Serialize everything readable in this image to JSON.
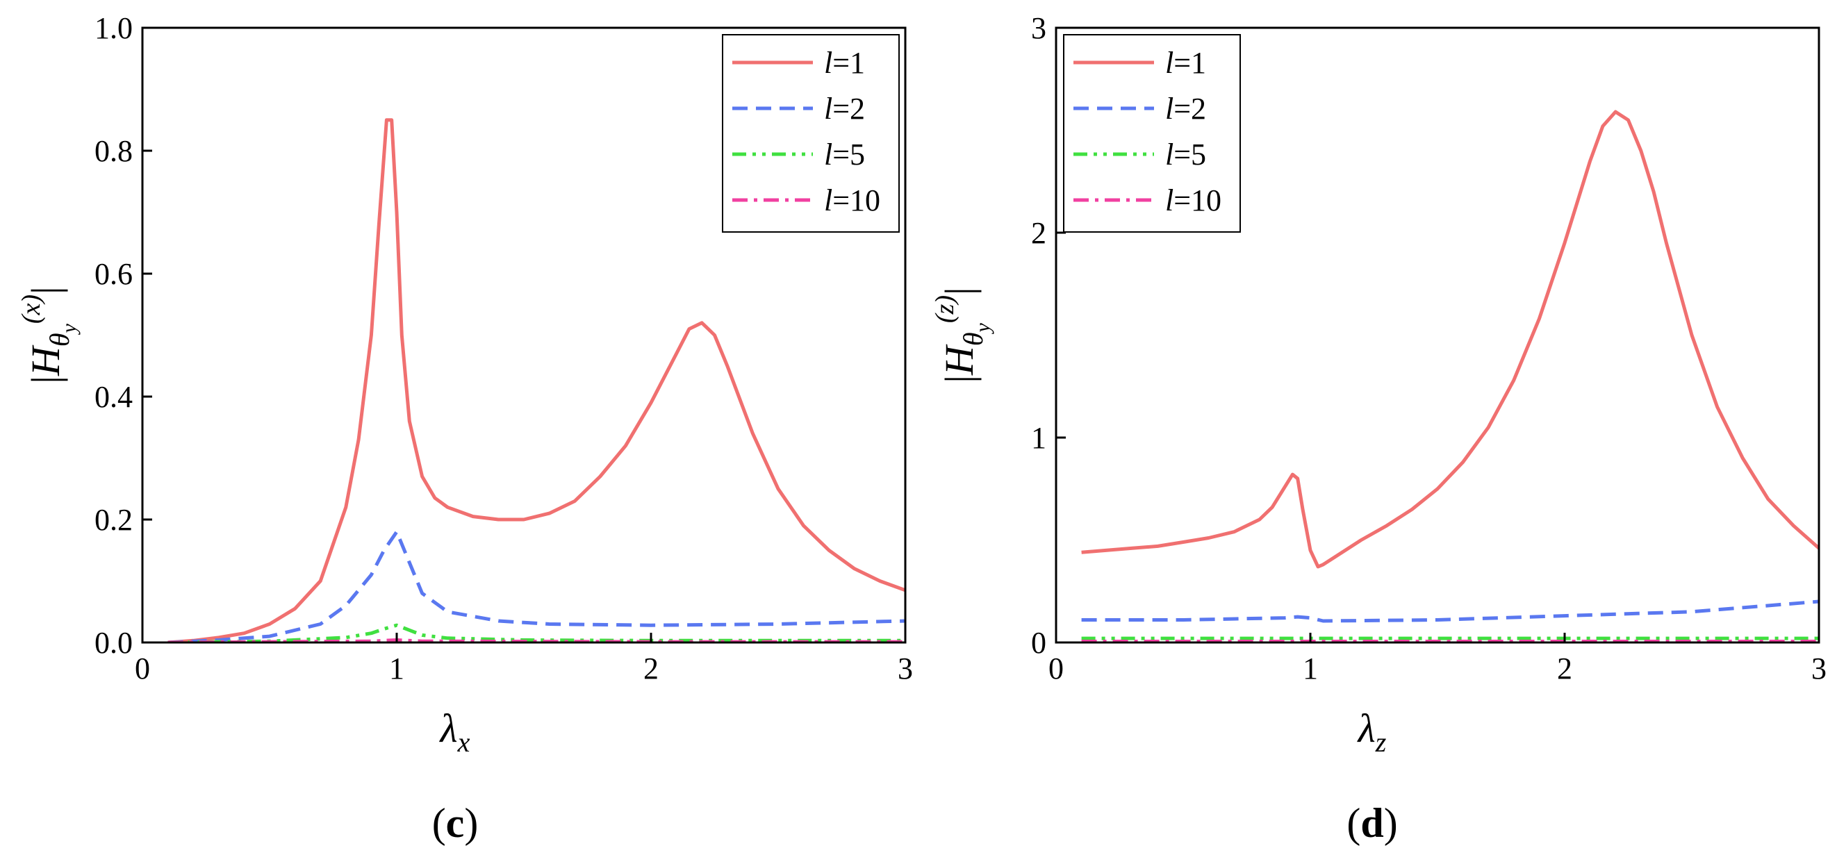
{
  "chart_data": [
    {
      "type": "line",
      "panel_label": "c",
      "xlabel": "λx",
      "ylabel": "|Hθy(x)|",
      "xlim": [
        0,
        3
      ],
      "ylim": [
        0,
        1.0
      ],
      "xticks": [
        0,
        1,
        2,
        3
      ],
      "xtick_labels": [
        "0",
        "1",
        "2",
        "3"
      ],
      "yticks": [
        0,
        0.2,
        0.4,
        0.6,
        0.8,
        1.0
      ],
      "ytick_labels": [
        "0.0",
        "0.2",
        "0.4",
        "0.6",
        "0.8",
        "1.0"
      ],
      "grid": false,
      "legend_position": "top-right",
      "series": [
        {
          "name": "l=1",
          "color": "#f07070",
          "dash": "solid",
          "x": [
            0.1,
            0.2,
            0.3,
            0.4,
            0.5,
            0.6,
            0.7,
            0.8,
            0.85,
            0.9,
            0.93,
            0.96,
            0.98,
            1.0,
            1.02,
            1.05,
            1.1,
            1.15,
            1.2,
            1.3,
            1.4,
            1.5,
            1.6,
            1.7,
            1.8,
            1.9,
            2.0,
            2.1,
            2.15,
            2.2,
            2.25,
            2.3,
            2.4,
            2.5,
            2.6,
            2.7,
            2.8,
            2.9,
            3.0
          ],
          "y": [
            0.0,
            0.003,
            0.008,
            0.015,
            0.03,
            0.055,
            0.1,
            0.22,
            0.33,
            0.5,
            0.68,
            0.85,
            0.85,
            0.7,
            0.5,
            0.36,
            0.27,
            0.235,
            0.22,
            0.205,
            0.2,
            0.2,
            0.21,
            0.23,
            0.27,
            0.32,
            0.39,
            0.47,
            0.51,
            0.52,
            0.5,
            0.45,
            0.34,
            0.25,
            0.19,
            0.15,
            0.12,
            0.1,
            0.085
          ]
        },
        {
          "name": "l=2",
          "color": "#5a78f0",
          "dash": "dashed",
          "x": [
            0.1,
            0.3,
            0.5,
            0.7,
            0.8,
            0.9,
            0.95,
            1.0,
            1.05,
            1.1,
            1.2,
            1.4,
            1.6,
            2.0,
            2.5,
            3.0
          ],
          "y": [
            0.0,
            0.004,
            0.01,
            0.03,
            0.06,
            0.11,
            0.15,
            0.18,
            0.13,
            0.08,
            0.05,
            0.035,
            0.03,
            0.028,
            0.03,
            0.035
          ]
        },
        {
          "name": "l=5",
          "color": "#40e040",
          "dash": "dash-dot-dot",
          "x": [
            0.1,
            0.5,
            0.8,
            0.9,
            0.95,
            1.0,
            1.05,
            1.1,
            1.2,
            1.5,
            2.0,
            3.0
          ],
          "y": [
            0.0,
            0.002,
            0.008,
            0.015,
            0.022,
            0.028,
            0.02,
            0.012,
            0.007,
            0.004,
            0.003,
            0.003
          ]
        },
        {
          "name": "l=10",
          "color": "#f040a0",
          "dash": "dash-dot",
          "x": [
            0.1,
            0.5,
            0.9,
            1.0,
            1.1,
            2.0,
            3.0
          ],
          "y": [
            0.0,
            0.001,
            0.002,
            0.004,
            0.002,
            0.001,
            0.001
          ]
        }
      ]
    },
    {
      "type": "line",
      "panel_label": "d",
      "xlabel": "λz",
      "ylabel": "|Hθy(z)|",
      "xlim": [
        0,
        3
      ],
      "ylim": [
        0,
        3
      ],
      "xticks": [
        0,
        1,
        2,
        3
      ],
      "xtick_labels": [
        "0",
        "1",
        "2",
        "3"
      ],
      "yticks": [
        0,
        1,
        2,
        3
      ],
      "ytick_labels": [
        "0",
        "1",
        "2",
        "3"
      ],
      "grid": false,
      "legend_position": "top-left",
      "series": [
        {
          "name": "l=1",
          "color": "#f07070",
          "dash": "solid",
          "x": [
            0.1,
            0.2,
            0.3,
            0.4,
            0.5,
            0.6,
            0.7,
            0.8,
            0.85,
            0.9,
            0.93,
            0.95,
            0.97,
            1.0,
            1.03,
            1.05,
            1.1,
            1.2,
            1.3,
            1.4,
            1.5,
            1.6,
            1.7,
            1.8,
            1.9,
            2.0,
            2.05,
            2.1,
            2.15,
            2.2,
            2.25,
            2.3,
            2.35,
            2.4,
            2.5,
            2.6,
            2.7,
            2.8,
            2.9,
            3.0
          ],
          "y": [
            0.44,
            0.45,
            0.46,
            0.47,
            0.49,
            0.51,
            0.54,
            0.6,
            0.66,
            0.76,
            0.82,
            0.8,
            0.65,
            0.45,
            0.37,
            0.38,
            0.42,
            0.5,
            0.57,
            0.65,
            0.75,
            0.88,
            1.05,
            1.28,
            1.58,
            1.95,
            2.15,
            2.35,
            2.52,
            2.59,
            2.55,
            2.4,
            2.2,
            1.95,
            1.5,
            1.15,
            0.9,
            0.7,
            0.57,
            0.46
          ]
        },
        {
          "name": "l=2",
          "color": "#5a78f0",
          "dash": "dashed",
          "x": [
            0.1,
            0.5,
            0.9,
            0.95,
            1.0,
            1.05,
            1.5,
            2.0,
            2.5,
            3.0
          ],
          "y": [
            0.11,
            0.11,
            0.12,
            0.125,
            0.12,
            0.105,
            0.11,
            0.13,
            0.15,
            0.2
          ]
        },
        {
          "name": "l=5",
          "color": "#40e040",
          "dash": "dash-dot-dot",
          "x": [
            0.1,
            1.0,
            2.0,
            3.0
          ],
          "y": [
            0.02,
            0.02,
            0.02,
            0.02
          ]
        },
        {
          "name": "l=10",
          "color": "#f040a0",
          "dash": "dash-dot",
          "x": [
            0.1,
            1.0,
            2.0,
            3.0
          ],
          "y": [
            0.005,
            0.005,
            0.005,
            0.005
          ]
        }
      ]
    }
  ]
}
